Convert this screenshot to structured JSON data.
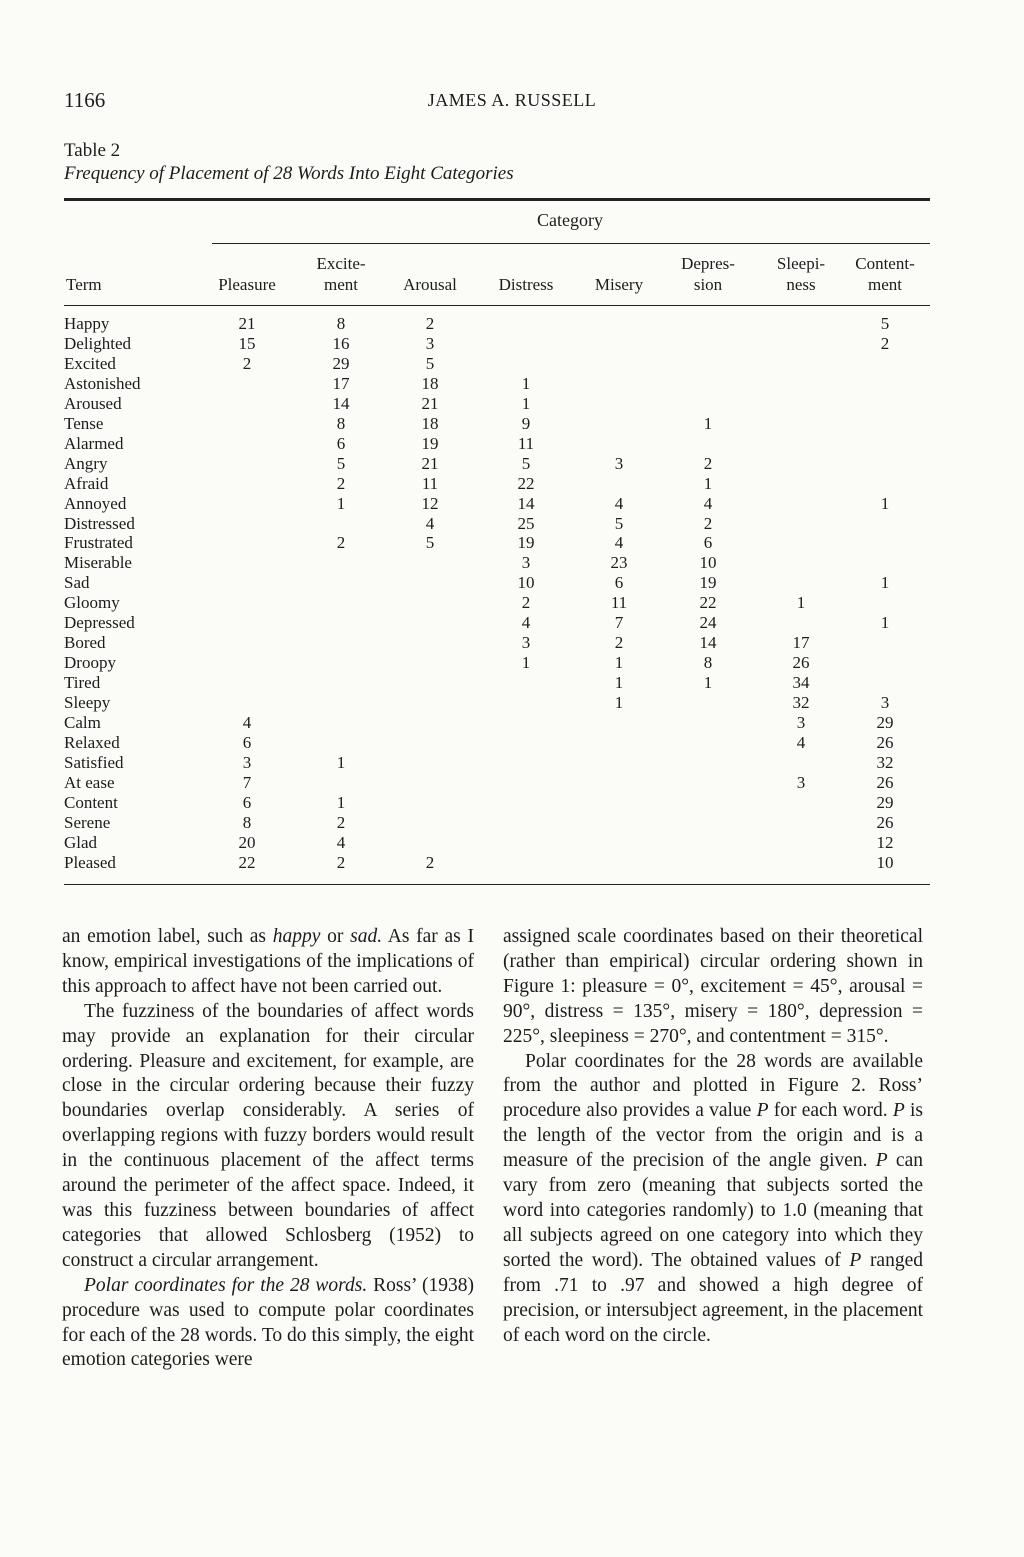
{
  "header": {
    "page_number": "1166",
    "running_head": "JAMES A. RUSSELL"
  },
  "table": {
    "label": "Table 2",
    "title": "Frequency of Placement of 28 Words Into Eight Categories",
    "category_label": "Category",
    "term_header": "Term",
    "columns": [
      [
        "Pleasure"
      ],
      [
        "Excite-",
        "ment"
      ],
      [
        "Arousal"
      ],
      [
        "Distress"
      ],
      [
        "Misery"
      ],
      [
        "Depres-",
        "sion"
      ],
      [
        "Sleepi-",
        "ness"
      ],
      [
        "Content-",
        "ment"
      ]
    ],
    "rows": [
      {
        "term": "Happy",
        "v": [
          "21",
          "8",
          "2",
          "",
          "",
          "",
          "",
          "5"
        ]
      },
      {
        "term": "Delighted",
        "v": [
          "15",
          "16",
          "3",
          "",
          "",
          "",
          "",
          "2"
        ]
      },
      {
        "term": "Excited",
        "v": [
          "2",
          "29",
          "5",
          "",
          "",
          "",
          "",
          ""
        ]
      },
      {
        "term": "Astonished",
        "v": [
          "",
          "17",
          "18",
          "1",
          "",
          "",
          "",
          ""
        ]
      },
      {
        "term": "Aroused",
        "v": [
          "",
          "14",
          "21",
          "1",
          "",
          "",
          "",
          ""
        ]
      },
      {
        "term": "Tense",
        "v": [
          "",
          "8",
          "18",
          "9",
          "",
          "1",
          "",
          ""
        ]
      },
      {
        "term": "Alarmed",
        "v": [
          "",
          "6",
          "19",
          "11",
          "",
          "",
          "",
          ""
        ]
      },
      {
        "term": "Angry",
        "v": [
          "",
          "5",
          "21",
          "5",
          "3",
          "2",
          "",
          ""
        ]
      },
      {
        "term": "Afraid",
        "v": [
          "",
          "2",
          "11",
          "22",
          "",
          "1",
          "",
          ""
        ]
      },
      {
        "term": "Annoyed",
        "v": [
          "",
          "1",
          "12",
          "14",
          "4",
          "4",
          "",
          "1"
        ]
      },
      {
        "term": "Distressed",
        "v": [
          "",
          "",
          "4",
          "25",
          "5",
          "2",
          "",
          ""
        ]
      },
      {
        "term": "Frustrated",
        "v": [
          "",
          "2",
          "5",
          "19",
          "4",
          "6",
          "",
          ""
        ]
      },
      {
        "term": "Miserable",
        "v": [
          "",
          "",
          "",
          "3",
          "23",
          "10",
          "",
          ""
        ]
      },
      {
        "term": "Sad",
        "v": [
          "",
          "",
          "",
          "10",
          "6",
          "19",
          "",
          "1"
        ]
      },
      {
        "term": "Gloomy",
        "v": [
          "",
          "",
          "",
          "2",
          "11",
          "22",
          "1",
          ""
        ]
      },
      {
        "term": "Depressed",
        "v": [
          "",
          "",
          "",
          "4",
          "7",
          "24",
          "",
          "1"
        ]
      },
      {
        "term": "Bored",
        "v": [
          "",
          "",
          "",
          "3",
          "2",
          "14",
          "17",
          ""
        ]
      },
      {
        "term": "Droopy",
        "v": [
          "",
          "",
          "",
          "1",
          "1",
          "8",
          "26",
          ""
        ]
      },
      {
        "term": "Tired",
        "v": [
          "",
          "",
          "",
          "",
          "1",
          "1",
          "34",
          ""
        ]
      },
      {
        "term": "Sleepy",
        "v": [
          "",
          "",
          "",
          "",
          "1",
          "",
          "32",
          "3"
        ]
      },
      {
        "term": "Calm",
        "v": [
          "4",
          "",
          "",
          "",
          "",
          "",
          "3",
          "29"
        ]
      },
      {
        "term": "Relaxed",
        "v": [
          "6",
          "",
          "",
          "",
          "",
          "",
          "4",
          "26"
        ]
      },
      {
        "term": "Satisfied",
        "v": [
          "3",
          "1",
          "",
          "",
          "",
          "",
          "",
          "32"
        ]
      },
      {
        "term": "At ease",
        "v": [
          "7",
          "",
          "",
          "",
          "",
          "",
          "3",
          "26"
        ]
      },
      {
        "term": "Content",
        "v": [
          "6",
          "1",
          "",
          "",
          "",
          "",
          "",
          "29"
        ]
      },
      {
        "term": "Serene",
        "v": [
          "8",
          "2",
          "",
          "",
          "",
          "",
          "",
          "26"
        ]
      },
      {
        "term": "Glad",
        "v": [
          "20",
          "4",
          "",
          "",
          "",
          "",
          "",
          "12"
        ]
      },
      {
        "term": "Pleased",
        "v": [
          "22",
          "2",
          "2",
          "",
          "",
          "",
          "",
          "10"
        ]
      }
    ]
  },
  "body": {
    "left": [
      [
        {
          "t": "an emotion label, such as "
        },
        {
          "t": "happy",
          "i": true
        },
        {
          "t": " or "
        },
        {
          "t": "sad.",
          "i": true
        },
        {
          "t": " As far as I know, empirical investigations of the implications of this approach to affect have not been carried out."
        }
      ],
      [
        {
          "t": "The fuzziness of the boundaries of affect words may provide an explanation for their circular ordering. Pleasure and excitement, for example, are close in the circular ordering because their fuzzy boundaries overlap considerably. A series of overlapping regions with fuzzy borders would result in the continuous placement of the affect terms around the perimeter of the affect space. Indeed, it was this fuzziness between boundaries of affect categories that allowed Schlosberg (1952) to construct a circular arrangement."
        }
      ],
      [
        {
          "t": "Polar coordinates for the 28 words.",
          "i": true
        },
        {
          "t": " Ross’ (1938) procedure was used to compute polar coordinates for each of the 28 words. To do this simply, the eight emotion categories were"
        }
      ]
    ],
    "right": [
      [
        {
          "t": "assigned scale coordinates based on their theoretical (rather than empirical) circular ordering shown in Figure 1: pleasure = 0°, excitement = 45°, arousal = 90°, distress = 135°, misery = 180°, depression = 225°, sleepiness = 270°, and contentment = 315°."
        }
      ],
      [
        {
          "t": "Polar coordinates for the 28 words are available from the author and plotted in Figure 2. Ross’ procedure also provides a value "
        },
        {
          "t": "P",
          "i": true
        },
        {
          "t": " for each word. "
        },
        {
          "t": "P",
          "i": true
        },
        {
          "t": " is the length of the vector from the origin and is a measure of the precision of the angle given. "
        },
        {
          "t": "P",
          "i": true
        },
        {
          "t": " can vary from zero (meaning that subjects sorted the word into categories randomly) to 1.0 (meaning that all subjects agreed on one category into which they sorted the word). The obtained values of "
        },
        {
          "t": "P",
          "i": true
        },
        {
          "t": " ranged from .71 to .97 and showed a high degree of precision, or intersubject agreement, in the placement of each word on the circle."
        }
      ]
    ]
  }
}
